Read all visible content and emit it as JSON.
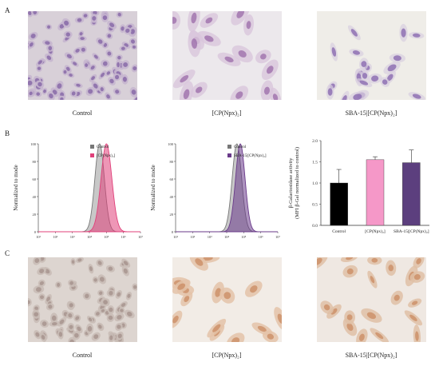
{
  "panels": {
    "a": {
      "label": "A",
      "captions": [
        "Control",
        "[CP(Npx)₂]",
        "SBA-15|[CP(Npx)₂]"
      ]
    },
    "b": {
      "label": "B"
    },
    "c": {
      "label": "C",
      "captions": [
        "Control",
        "[CP(Npx)₂]",
        "SBA-15|[CP(Npx)₂]"
      ]
    }
  },
  "colors": {
    "control": "#9a9a9a",
    "cp": "#e0407a",
    "sba": "#6a3a8a",
    "bar_control": "#000000",
    "bar_cp": "#f598c8",
    "bar_sba": "#5c3f7e",
    "stain_a": "#7a5aa0",
    "stain_c": "#c98a60"
  },
  "chart_data": [
    {
      "type": "area",
      "ylabel": "Normalized to mode",
      "yticks": [
        "0",
        "20",
        "40",
        "60",
        "80",
        "100"
      ],
      "xticks": [
        "10¹",
        "10²",
        "10³",
        "10⁴",
        "10⁵",
        "10⁶",
        "10⁷"
      ],
      "x_scale": "log",
      "ylim": [
        0,
        100
      ],
      "legend": "top-right",
      "series": [
        {
          "name": "Control",
          "peak_log": 4.6,
          "width": 0.28
        },
        {
          "name": "[CP(Npx)₂]",
          "peak_log": 5.0,
          "width": 0.32
        }
      ]
    },
    {
      "type": "area",
      "ylabel": "Normalized to mode",
      "yticks": [
        "0",
        "20",
        "40",
        "60",
        "80",
        "100"
      ],
      "xticks": [
        "10¹",
        "10²",
        "10³",
        "10⁴",
        "10⁵",
        "10⁶",
        "10⁷"
      ],
      "x_scale": "log",
      "ylim": [
        0,
        100
      ],
      "legend": "top-right",
      "series": [
        {
          "name": "Control",
          "peak_log": 4.6,
          "width": 0.28
        },
        {
          "name": "SBA-15|[CP(Npx)₂]",
          "peak_log": 4.8,
          "width": 0.28
        }
      ]
    },
    {
      "type": "bar",
      "ylabel_line1": "β-Galactosidase activity",
      "ylabel_line2": "(MFI β-Gal normalized to control)",
      "categories": [
        "Control",
        "[CP(Npx)₂]",
        "SBA-15|[CP(Npx)₂]"
      ],
      "values": [
        1.0,
        1.55,
        1.48
      ],
      "errors": [
        0.32,
        0.07,
        0.3
      ],
      "yticks": [
        "0.0",
        "0.5",
        "1.0",
        "1.5",
        "2.0"
      ],
      "ylim": [
        0,
        2.0
      ]
    }
  ]
}
